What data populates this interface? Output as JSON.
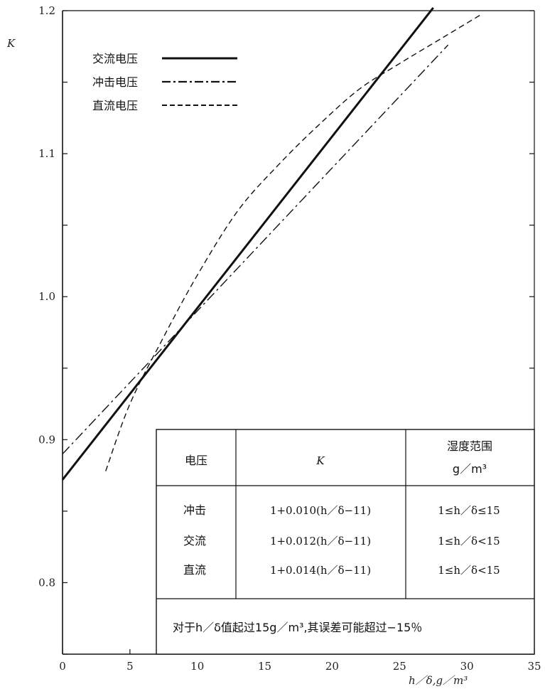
{
  "chart_data": {
    "type": "line",
    "ylabel": "K",
    "xlabel": "h／δ,g／m³",
    "xlim": [
      0,
      35
    ],
    "ylim": [
      0.75,
      1.2
    ],
    "x_ticks": [
      0,
      5,
      10,
      15,
      20,
      25,
      30,
      35
    ],
    "y_ticks_labeled": [
      "0.8",
      "0.9",
      "1.0",
      "1.1",
      "1.2"
    ],
    "y_ticks_values": [
      0.8,
      0.9,
      1.0,
      1.1,
      1.2
    ],
    "grid": false,
    "legend_position": "top-left",
    "series": [
      {
        "name": "交流电压",
        "style": "solid",
        "color": "#111111",
        "x": [
          0,
          27.5
        ],
        "y": [
          0.872,
          1.202
        ]
      },
      {
        "name": "冲击电压",
        "style": "dashdot",
        "color": "#111111",
        "x": [
          0,
          28.6
        ],
        "y": [
          0.89,
          1.176
        ]
      },
      {
        "name": "直流电压",
        "style": "dashed",
        "color": "#111111",
        "x": [
          3.2,
          5,
          7.4,
          10,
          13,
          16,
          19,
          22,
          25,
          28,
          31
        ],
        "y": [
          0.878,
          0.925,
          0.97,
          1.015,
          1.06,
          1.092,
          1.12,
          1.145,
          1.163,
          1.18,
          1.197
        ]
      }
    ],
    "table": {
      "header": [
        "电压",
        "K",
        "湿度范围",
        "g／m³"
      ],
      "rows": [
        [
          "冲击",
          "1+0.010(h／δ−11)",
          "1≤h／δ≤15"
        ],
        [
          "交流",
          "1+0.012(h／δ−11)",
          "1≤h／δ<15"
        ],
        [
          "直流",
          "1+0.014(h／δ−11)",
          "1≤h／δ<15"
        ]
      ],
      "note": "对于h／δ值起过15g／m³,其误差可能超过−15％"
    }
  }
}
